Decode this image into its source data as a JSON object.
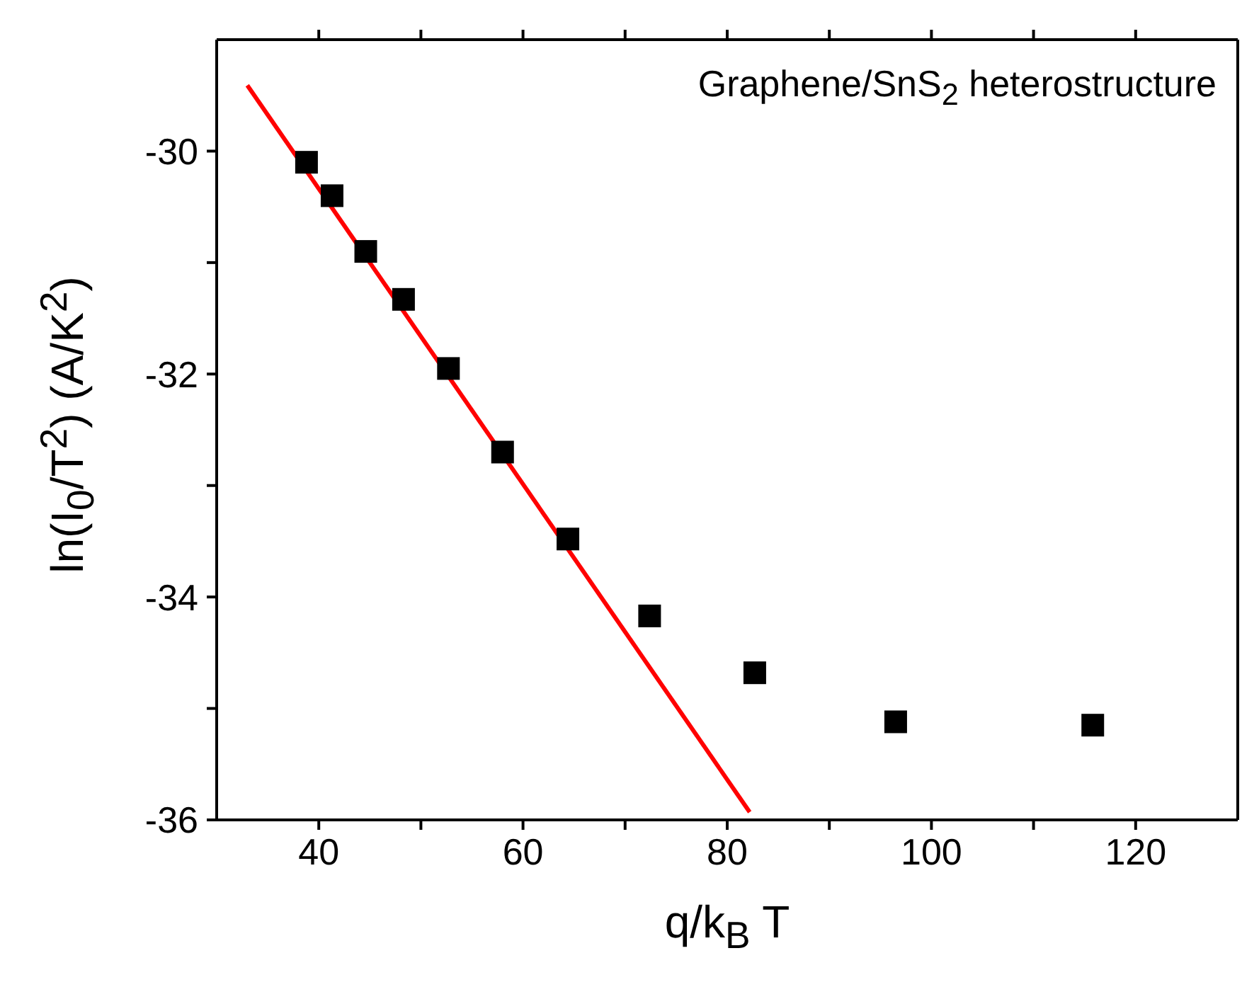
{
  "chart_data": {
    "type": "scatter",
    "xlabel": "q/k$_{B}$ T",
    "ylabel": "ln(I$_{0}$/T$^{2}$) (A/K$^{2}$)",
    "annotations": [
      "Graphene/SnS$_{2}$ heterostructure"
    ],
    "xlim": [
      30,
      130
    ],
    "xticks": [
      40,
      {
        "value": 50,
        "label": null
      },
      60,
      {
        "value": 70,
        "label": null
      },
      80,
      {
        "value": 90,
        "label": null
      },
      100,
      {
        "value": 110,
        "label": null
      },
      120
    ],
    "ylim": [
      -36,
      -29
    ],
    "yticks": [
      -36,
      {
        "value": -35,
        "label": null
      },
      -34,
      {
        "value": -33,
        "label": null
      },
      -32,
      {
        "value": -31,
        "label": null
      },
      -30
    ],
    "marker": "square",
    "series": [
      {
        "color": "#000000",
        "x": [
          38.8,
          41.3,
          44.6,
          48.3,
          52.7,
          58.0,
          64.4,
          72.4,
          82.7,
          96.5,
          115.8
        ],
        "values": [
          -30.1,
          -30.4,
          -30.9,
          -31.33,
          -31.95,
          -32.7,
          -33.48,
          -34.17,
          -34.68,
          -35.12,
          -35.15
        ]
      },
      {
        "type": "line",
        "color": "#ff0000",
        "marker": "none",
        "x": [
          33.0,
          82.2
        ],
        "values": [
          -29.41,
          -35.93
        ]
      }
    ]
  }
}
